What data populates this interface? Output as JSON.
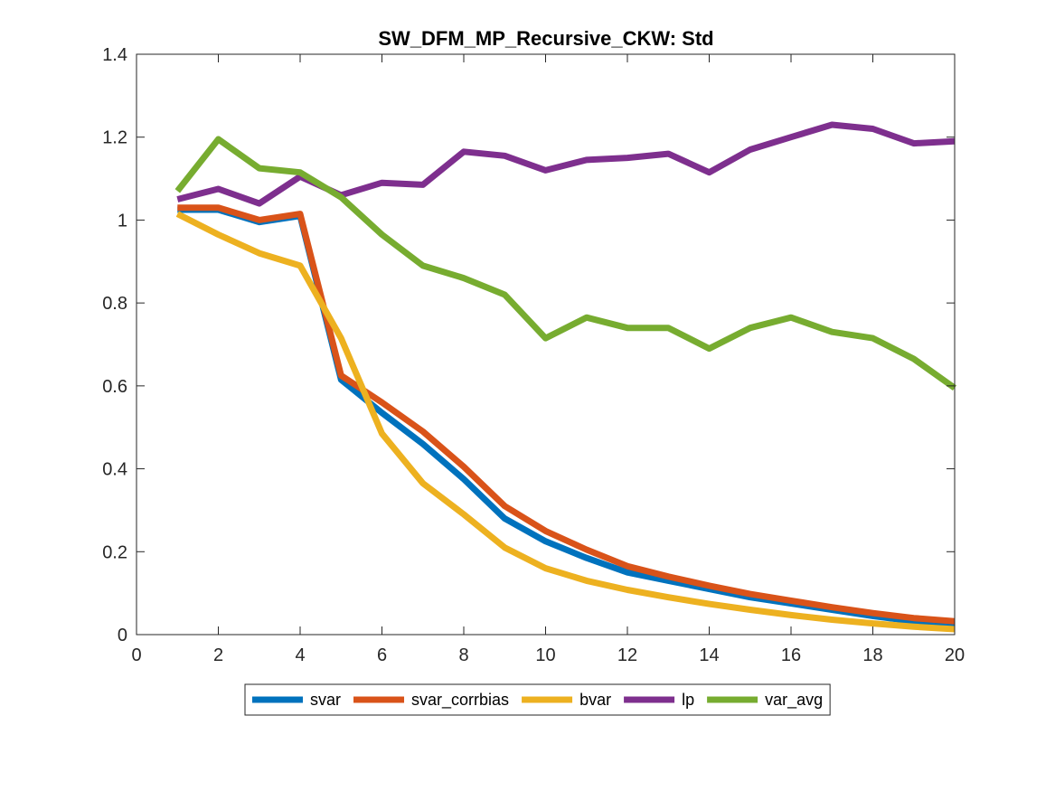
{
  "chart_data": {
    "type": "line",
    "title": "SW_DFM_MP_Recursive_CKW: Std",
    "xlabel": "",
    "ylabel": "",
    "xlim": [
      0,
      20
    ],
    "ylim": [
      0,
      1.4
    ],
    "xticks": [
      0,
      2,
      4,
      6,
      8,
      10,
      12,
      14,
      16,
      18,
      20
    ],
    "yticks": [
      0,
      0.2,
      0.4,
      0.6,
      0.8,
      1,
      1.2,
      1.4
    ],
    "xtick_labels": [
      "0",
      "2",
      "4",
      "6",
      "8",
      "10",
      "12",
      "14",
      "16",
      "18",
      "20"
    ],
    "ytick_labels": [
      "0",
      "0.2",
      "0.4",
      "0.6",
      "0.8",
      "1",
      "1.2",
      "1.4"
    ],
    "grid": false,
    "legend_position": "bottom-outside",
    "x": [
      1,
      2,
      3,
      4,
      5,
      6,
      7,
      8,
      9,
      10,
      11,
      12,
      13,
      14,
      15,
      16,
      17,
      18,
      19,
      20
    ],
    "series": [
      {
        "name": "svar",
        "color": "#0072BD",
        "values": [
          1.025,
          1.025,
          0.995,
          1.01,
          0.615,
          0.535,
          0.46,
          0.375,
          0.28,
          0.225,
          0.185,
          0.15,
          0.13,
          0.11,
          0.09,
          0.075,
          0.06,
          0.045,
          0.032,
          0.025
        ]
      },
      {
        "name": "svar_corrbias",
        "color": "#D95319",
        "values": [
          1.03,
          1.03,
          1.0,
          1.015,
          0.625,
          0.56,
          0.49,
          0.405,
          0.31,
          0.25,
          0.205,
          0.165,
          0.14,
          0.118,
          0.098,
          0.082,
          0.066,
          0.052,
          0.04,
          0.032
        ]
      },
      {
        "name": "bvar",
        "color": "#EDB120",
        "values": [
          1.015,
          0.965,
          0.92,
          0.89,
          0.715,
          0.485,
          0.365,
          0.29,
          0.21,
          0.16,
          0.13,
          0.108,
          0.09,
          0.074,
          0.06,
          0.047,
          0.036,
          0.027,
          0.019,
          0.013
        ]
      },
      {
        "name": "lp",
        "color": "#7E2F8E",
        "values": [
          1.05,
          1.075,
          1.04,
          1.105,
          1.06,
          1.09,
          1.085,
          1.165,
          1.155,
          1.12,
          1.145,
          1.15,
          1.16,
          1.115,
          1.17,
          1.2,
          1.23,
          1.22,
          1.185,
          1.19
        ]
      },
      {
        "name": "var_avg",
        "color": "#77AC30",
        "values": [
          1.07,
          1.195,
          1.125,
          1.115,
          1.055,
          0.965,
          0.89,
          0.86,
          0.82,
          0.715,
          0.765,
          0.74,
          0.74,
          0.69,
          0.74,
          0.765,
          0.73,
          0.715,
          0.665,
          0.595
        ]
      }
    ]
  }
}
